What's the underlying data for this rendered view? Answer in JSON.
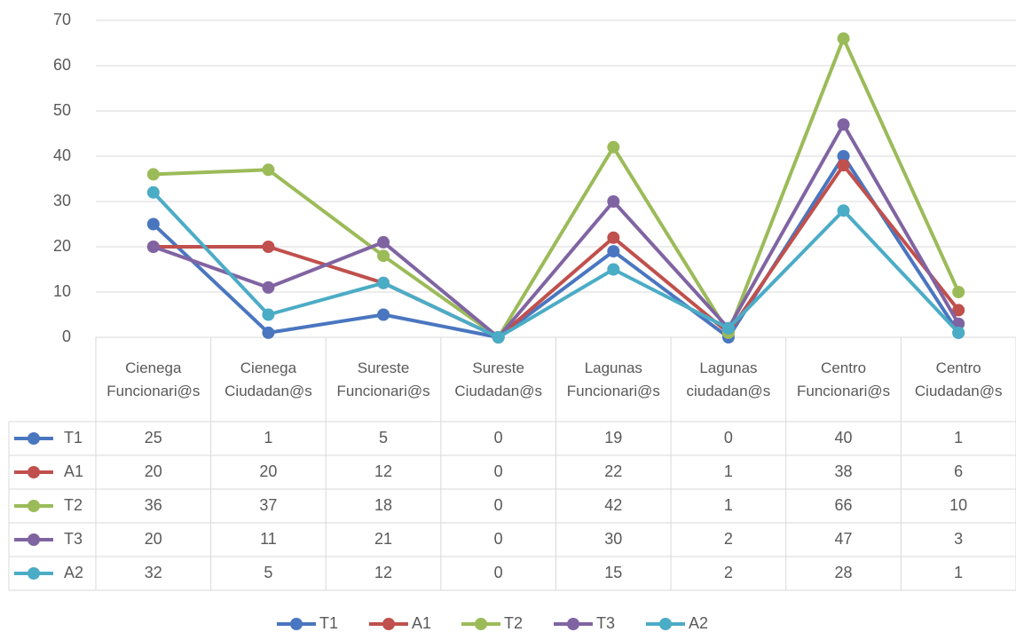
{
  "chart_data": {
    "type": "line",
    "categories": [
      "Cienega Funcionari@s",
      "Cienega Ciudadan@s",
      "Sureste Funcionari@s",
      "Sureste Ciudadan@s",
      "Lagunas Funcionari@s",
      "Lagunas ciudadan@s",
      "Centro Funcionari@s",
      "Centro Ciudadan@s"
    ],
    "series": [
      {
        "name": "T1",
        "color": "#4a76c0",
        "values": [
          25,
          1,
          5,
          0,
          19,
          0,
          40,
          1
        ]
      },
      {
        "name": "A1",
        "color": "#c0504d",
        "values": [
          20,
          20,
          12,
          0,
          22,
          1,
          38,
          6
        ]
      },
      {
        "name": "T2",
        "color": "#9bbb59",
        "values": [
          36,
          37,
          18,
          0,
          42,
          1,
          66,
          10
        ]
      },
      {
        "name": "T3",
        "color": "#8064a2",
        "values": [
          20,
          11,
          21,
          0,
          30,
          2,
          47,
          3
        ]
      },
      {
        "name": "A2",
        "color": "#4bacc6",
        "values": [
          32,
          5,
          12,
          0,
          15,
          2,
          28,
          1
        ]
      }
    ],
    "ylim": [
      0,
      70
    ],
    "yticks": [
      0,
      10,
      20,
      30,
      40,
      50,
      60,
      70
    ],
    "grid": true,
    "legend": "bottom"
  }
}
